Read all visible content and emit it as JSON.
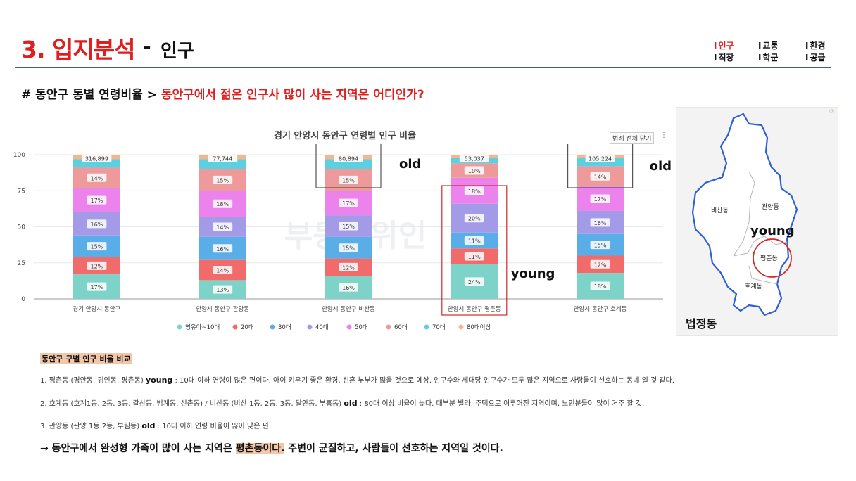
{
  "header": {
    "title_number": "3. 입지분석",
    "title_dash": "-",
    "title_sub": "인구",
    "nav": [
      {
        "label": "인구",
        "active": true
      },
      {
        "label": "교통",
        "active": false
      },
      {
        "label": "환경",
        "active": false
      },
      {
        "label": "직장",
        "active": false
      },
      {
        "label": "학군",
        "active": false
      },
      {
        "label": "공급",
        "active": false
      }
    ]
  },
  "question": {
    "prefix": "# 동안구 동별 연령비율 > ",
    "highlight": "동안구에서 젊은 인구사 많이 사는 지역은 어디인가?"
  },
  "chart_controls": {
    "legend_toggle": "범례 전체 닫기",
    "more": "⋮"
  },
  "chart_data": {
    "type": "bar",
    "stacked": true,
    "normalized": true,
    "title": "경기 안양시 동안구 연령별 인구 비율",
    "categories": [
      "경기 안양시 동안구",
      "안양시 동안구 관양동",
      "안양시 동안구 비산동",
      "안양시 동안구 평촌동",
      "안양시 동안구 호계동"
    ],
    "totals": [
      "316,899",
      "77,744",
      "80,894",
      "53,037",
      "105,224"
    ],
    "ylim": [
      0,
      100
    ],
    "yticks": [
      0,
      25,
      50,
      75,
      100
    ],
    "grid": true,
    "legend_position": "bottom",
    "series": [
      {
        "name": "영유아~10대",
        "color": "#7dd3c8",
        "values": [
          17,
          13,
          16,
          24,
          18
        ],
        "labels": [
          "17%",
          "13%",
          "16%",
          "24%",
          "18%"
        ]
      },
      {
        "name": "20대",
        "color": "#f26b6b",
        "values": [
          12,
          14,
          12,
          11,
          12
        ],
        "labels": [
          "12%",
          "14%",
          "12%",
          "11%",
          "12%"
        ]
      },
      {
        "name": "30대",
        "color": "#5aaee8",
        "values": [
          15,
          16,
          15,
          11,
          15
        ],
        "labels": [
          "15%",
          "16%",
          "15%",
          "11%",
          "15%"
        ]
      },
      {
        "name": "40대",
        "color": "#a49be8",
        "values": [
          16,
          14,
          15,
          20,
          16
        ],
        "labels": [
          "16%",
          "14%",
          "15%",
          "20%",
          "16%"
        ]
      },
      {
        "name": "50대",
        "color": "#ec82ec",
        "values": [
          17,
          18,
          17,
          18,
          17
        ],
        "labels": [
          "17%",
          "18%",
          "17%",
          "18%",
          "17%"
        ]
      },
      {
        "name": "60대",
        "color": "#ee9a9a",
        "values": [
          14,
          15,
          15,
          10,
          14
        ],
        "labels": [
          "14%",
          "15%",
          "15%",
          "10%",
          "14%"
        ]
      },
      {
        "name": "70대",
        "color": "#5cd0e0",
        "values": [
          6,
          7,
          7,
          4,
          6
        ],
        "labels": [
          "",
          "",
          "",
          "",
          ""
        ]
      },
      {
        "name": "80대이상",
        "color": "#f6b58a",
        "values": [
          3,
          3,
          3,
          2,
          2
        ],
        "labels": [
          "",
          "",
          "",
          "",
          ""
        ]
      }
    ],
    "annotations": [
      {
        "text": "old",
        "category_index": 2
      },
      {
        "text": "old",
        "category_index": 4
      },
      {
        "text": "young",
        "category_index": 3
      }
    ],
    "watermark": "부동산위인"
  },
  "map": {
    "labels": [
      "비산동",
      "관양동",
      "평촌동",
      "호계동"
    ],
    "young_label": "young",
    "caption": "법정동",
    "outline_color": "#2f5fd0",
    "highlight_color": "#d22a2a"
  },
  "notes": {
    "heading": "동안구 구별 인구 비율 비교",
    "line1_a": "1. 평촌동 (평안동, 귀인동, 평촌동)",
    "line1_b": "young",
    "line1_c": ": 10대 이하 연령이 많은 편이다. 아이 키우기 좋은 환경, 신혼 부부가 많을 것으로 예상.  인구수와 세대당 인구수가 모두 많은 지역으로 사람들이 선호하는 동네 일 것 같다.",
    "line2_a": "2. 호계동 (호계1동, 2동, 3동, 갈산동, 범계동, 신촌동) / 비산동 (비산 1동, 2동, 3동, 달안동, 부흥동)",
    "line2_b": "old",
    "line2_c": ": 80대 이상 비율이 높다. 대부분 빌라, 주택으로 이루어진 지역이며, 노인분들이 많이 거주 할 것.",
    "line3_a": "3. 관양동 (관양 1동 2동, 부림동)",
    "line3_b": "old",
    "line3_c": ": 10대 이하 연령 비율이 많이 낮은 편."
  },
  "conclusion": {
    "prefix": "→ 동안구에서 완성형 가족이 많이 사는 지역은 ",
    "highlight": "평촌동이다.",
    "suffix": " 주변이 균질하고, 사람들이 선호하는 지역일 것이다."
  }
}
